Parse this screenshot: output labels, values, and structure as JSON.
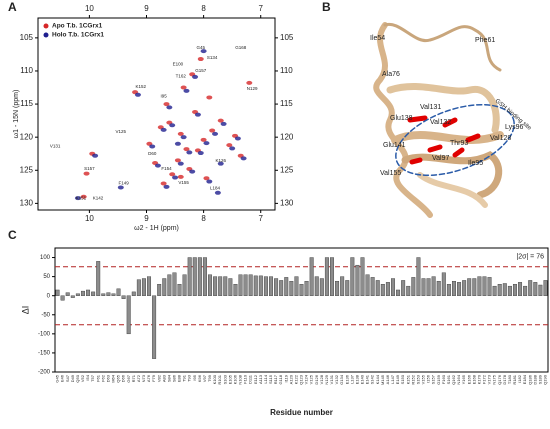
{
  "panels": [
    "A",
    "B",
    "C"
  ],
  "chart_data": [
    {
      "type": "scatter",
      "x_label": "ω2 - 1H (ppm)",
      "y_label": "ω1 - 15N (ppm)",
      "xlim": [
        10.9,
        6.75
      ],
      "ylim": [
        102,
        131
      ],
      "xticks": [
        10,
        9,
        8,
        7
      ],
      "yticks": [
        105,
        110,
        115,
        120,
        125,
        130
      ],
      "legend": "top-left",
      "series": [
        {
          "name": "Apo T.b. 1CGrx1",
          "color": "#d62728",
          "x": [
            9.95,
            9.2,
            8.75,
            8.95,
            8.6,
            8.4,
            8.15,
            8.3,
            8.0,
            7.85,
            7.7,
            7.55,
            8.45,
            8.55,
            8.25,
            8.1,
            7.95,
            8.35,
            8.65,
            8.85,
            7.45,
            8.05,
            8.2,
            7.35,
            8.7,
            10.05,
            10.1,
            7.2,
            8.4,
            7.9
          ],
          "y": [
            122.5,
            113.2,
            118.5,
            121.0,
            117.8,
            119.5,
            116.2,
            121.8,
            120.4,
            119.0,
            117.5,
            121.2,
            123.5,
            125.6,
            124.8,
            122.0,
            126.2,
            112.5,
            115.0,
            123.9,
            119.8,
            108.2,
            110.5,
            122.8,
            127.0,
            125.5,
            129.0,
            111.8,
            126.0,
            114.0
          ]
        },
        {
          "name": "Holo T.b. 1CGrx1",
          "color": "#1f1f8f",
          "x": [
            9.9,
            9.15,
            8.7,
            8.9,
            8.55,
            8.35,
            8.1,
            8.25,
            7.95,
            7.8,
            7.65,
            7.5,
            8.4,
            8.5,
            8.2,
            8.05,
            7.9,
            8.3,
            8.6,
            8.8,
            7.4,
            8.0,
            8.15,
            7.3,
            8.65,
            10.2,
            9.45,
            7.75,
            8.45,
            7.7
          ],
          "y": [
            122.8,
            113.6,
            118.9,
            121.4,
            118.2,
            120.0,
            116.6,
            122.3,
            120.9,
            119.5,
            118.0,
            121.7,
            124.0,
            126.1,
            125.2,
            122.4,
            126.7,
            113.0,
            115.5,
            124.3,
            120.2,
            107.0,
            110.9,
            123.2,
            127.5,
            129.2,
            127.6,
            128.4,
            121.0,
            124.0
          ]
        }
      ],
      "peak_labels": [
        {
          "text": "G45",
          "x": 8.05,
          "y": 106.5
        },
        {
          "text": "G168",
          "x": 7.35,
          "y": 106.5
        },
        {
          "text": "S134",
          "x": 7.85,
          "y": 108.0
        },
        {
          "text": "E100",
          "x": 8.45,
          "y": 109.0
        },
        {
          "text": "G157",
          "x": 8.05,
          "y": 110.0
        },
        {
          "text": "T162",
          "x": 8.4,
          "y": 110.8
        },
        {
          "text": "K152",
          "x": 9.1,
          "y": 112.4
        },
        {
          "text": "N129",
          "x": 7.15,
          "y": 112.7
        },
        {
          "text": "I95",
          "x": 8.7,
          "y": 113.8
        },
        {
          "text": "V125",
          "x": 9.45,
          "y": 119.2
        },
        {
          "text": "V131",
          "x": 10.6,
          "y": 121.4
        },
        {
          "text": "S157",
          "x": 10.0,
          "y": 124.8
        },
        {
          "text": "F149",
          "x": 9.4,
          "y": 127.0
        },
        {
          "text": "K151",
          "x": 10.15,
          "y": 129.2
        },
        {
          "text": "K142",
          "x": 9.85,
          "y": 129.2
        },
        {
          "text": "V155",
          "x": 8.35,
          "y": 126.9
        },
        {
          "text": "L184",
          "x": 7.8,
          "y": 127.7
        },
        {
          "text": "K126",
          "x": 7.7,
          "y": 123.6
        },
        {
          "text": "D60",
          "x": 8.9,
          "y": 122.5
        },
        {
          "text": "F154",
          "x": 8.65,
          "y": 124.8
        }
      ]
    },
    {
      "type": "bar",
      "y_label": "ΔI",
      "x_label": "Residue number",
      "color": "#8c8c8c",
      "ylim": [
        -200,
        125
      ],
      "yticks": [
        -200,
        -150,
        -100,
        -50,
        0,
        50,
        100
      ],
      "threshold": 76,
      "threshold_label": "|2σ| = 76",
      "categories": [
        "G45",
        "E46",
        "S47",
        "D49",
        "Q50",
        "V52",
        "I54",
        "T57",
        "F61",
        "F62",
        "D63",
        "M64",
        "Q65",
        "D66",
        "G67",
        "R71",
        "A72",
        "N73",
        "A76",
        "F79",
        "V82",
        "A83",
        "S84",
        "S86",
        "E88",
        "T91",
        "T93",
        "I95",
        "K96",
        "V97",
        "T99",
        "K100",
        "R101",
        "S103",
        "E105",
        "K106",
        "N108",
        "F110",
        "D111",
        "E112",
        "A113",
        "L114",
        "S115",
        "R117",
        "G118",
        "I119",
        "A120",
        "K122",
        "Q123",
        "V124",
        "V125",
        "D126",
        "V128",
        "N129",
        "V131",
        "V132",
        "G134",
        "E136",
        "L137",
        "E138",
        "E140",
        "E141",
        "S142",
        "K144",
        "M145",
        "A146",
        "L147",
        "E149",
        "S150",
        "K151",
        "R152",
        "S153",
        "V155",
        "I156",
        "S157",
        "G159",
        "F160",
        "S161",
        "Q162",
        "N164",
        "Y165",
        "E166",
        "E168",
        "K170",
        "F172",
        "V173",
        "N175",
        "Q176",
        "D178",
        "T180",
        "R181",
        "I182",
        "E184",
        "Q186",
        "D188",
        "S189",
        "Q190"
      ],
      "values": [
        15,
        -12,
        8,
        -5,
        5,
        12,
        15,
        10,
        90,
        5,
        8,
        5,
        18,
        -8,
        -100,
        10,
        42,
        45,
        50,
        -165,
        30,
        45,
        55,
        60,
        30,
        55,
        100,
        100,
        100,
        100,
        55,
        50,
        50,
        50,
        45,
        30,
        55,
        55,
        55,
        52,
        52,
        50,
        50,
        45,
        40,
        48,
        38,
        50,
        30,
        38,
        100,
        50,
        45,
        100,
        100,
        38,
        50,
        40,
        100,
        80,
        100,
        55,
        48,
        40,
        30,
        35,
        45,
        15,
        40,
        25,
        48,
        100,
        45,
        45,
        50,
        38,
        60,
        30,
        38,
        35,
        40,
        45,
        45,
        50,
        50,
        48,
        25,
        30,
        32,
        25,
        30,
        35,
        25,
        40,
        35,
        28,
        40
      ]
    }
  ],
  "structure": {
    "labels": [
      "Ile54",
      "Phe61",
      "Ala76",
      "Glu138",
      "Val131",
      "Val132",
      "GSH binding site",
      "Glu141",
      "Thr93",
      "Val128",
      "Lys96",
      "Val97",
      "Ile95",
      "Val155"
    ]
  }
}
